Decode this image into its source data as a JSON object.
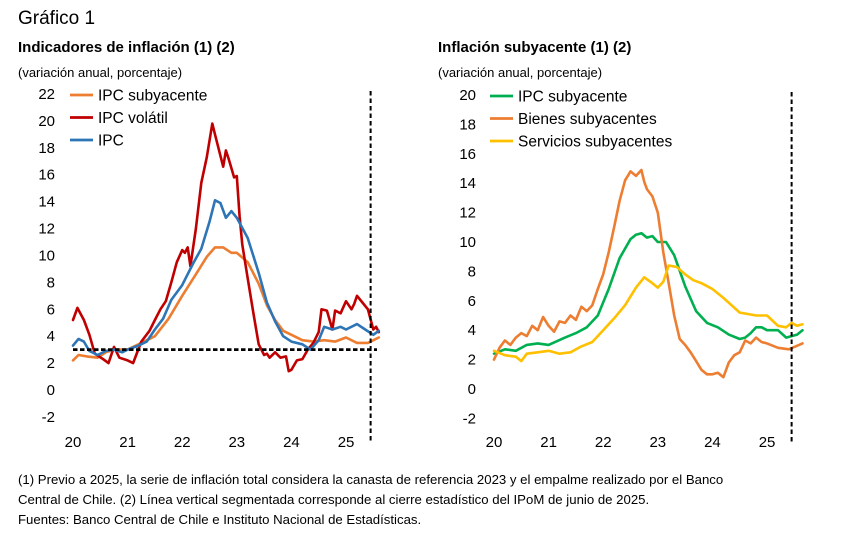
{
  "figure_title": "Gráfico 1",
  "notes": [
    "(1) Previo a 2025, la serie de inflación total considera la canasta de referencia 2023 y el empalme realizado por el Banco",
    "Central de Chile. (2) Línea vertical segmentada corresponde al cierre estadístico del IPoM de junio de 2025.",
    "Fuentes: Banco Central de Chile e Instituto Nacional de Estadísticas."
  ],
  "chart_data": [
    {
      "type": "line",
      "title": "Indicadores de inflación (1) (2)",
      "subtitle": "(variación anual, porcentaje)",
      "xlabel": "",
      "ylabel": "",
      "xlim": [
        2020,
        2025.75
      ],
      "ylim": [
        -2,
        22
      ],
      "x_ticks": [
        2020,
        2021,
        2022,
        2023,
        2024,
        2025
      ],
      "x_tick_labels": [
        "20",
        "21",
        "22",
        "23",
        "24",
        "25"
      ],
      "y_ticks": [
        -2,
        0,
        2,
        4,
        6,
        8,
        10,
        12,
        14,
        16,
        18,
        20,
        22
      ],
      "y_tick_labels": [
        "-2",
        "0",
        "2",
        "4",
        "6",
        "8",
        "10",
        "12",
        "14",
        "16",
        "18",
        "20",
        "22"
      ],
      "grid": false,
      "legend_position": "top-left",
      "reference_lines": [
        {
          "orientation": "horizontal",
          "value": 3,
          "style": "dashed",
          "color": "#000000"
        },
        {
          "orientation": "vertical",
          "value": 2025.45,
          "style": "dashed",
          "color": "#000000"
        }
      ],
      "series": [
        {
          "name": "IPC subyacente",
          "color": "#ED7D31",
          "x": [
            2020.0,
            2020.1,
            2020.25,
            2020.45,
            2020.6,
            2020.75,
            2021.0,
            2021.25,
            2021.5,
            2021.75,
            2022.0,
            2022.25,
            2022.45,
            2022.6,
            2022.75,
            2022.9,
            2023.0,
            2023.2,
            2023.4,
            2023.55,
            2023.7,
            2023.85,
            2024.0,
            2024.2,
            2024.4,
            2024.6,
            2024.8,
            2025.0,
            2025.2,
            2025.4,
            2025.6
          ],
          "values": [
            2.2,
            2.6,
            2.5,
            2.4,
            2.8,
            3.0,
            3.0,
            3.5,
            4.0,
            5.3,
            7.0,
            8.6,
            9.9,
            10.6,
            10.6,
            10.2,
            10.2,
            9.5,
            7.9,
            6.3,
            5.2,
            4.4,
            4.1,
            3.7,
            3.6,
            3.7,
            3.6,
            3.9,
            3.5,
            3.5,
            3.9
          ]
        },
        {
          "name": "IPC volátil",
          "color": "#C00000",
          "x": [
            2020.0,
            2020.08,
            2020.2,
            2020.3,
            2020.4,
            2020.55,
            2020.65,
            2020.75,
            2020.85,
            2021.0,
            2021.1,
            2021.25,
            2021.4,
            2021.5,
            2021.6,
            2021.7,
            2021.8,
            2021.9,
            2022.0,
            2022.05,
            2022.1,
            2022.15,
            2022.25,
            2022.35,
            2022.45,
            2022.55,
            2022.6,
            2022.65,
            2022.75,
            2022.8,
            2022.85,
            2022.95,
            2023.0,
            2023.05,
            2023.1,
            2023.2,
            2023.3,
            2023.4,
            2023.5,
            2023.55,
            2023.6,
            2023.7,
            2023.8,
            2023.9,
            2023.95,
            2024.0,
            2024.1,
            2024.2,
            2024.3,
            2024.4,
            2024.5,
            2024.55,
            2024.65,
            2024.75,
            2024.8,
            2024.9,
            2025.0,
            2025.1,
            2025.15,
            2025.2,
            2025.3,
            2025.4,
            2025.5,
            2025.55,
            2025.6
          ],
          "values": [
            5.2,
            6.1,
            5.2,
            4.1,
            2.7,
            2.3,
            2.0,
            3.2,
            2.4,
            2.2,
            2.0,
            3.6,
            4.4,
            5.2,
            6.0,
            6.6,
            8.0,
            9.5,
            10.4,
            10.2,
            10.6,
            9.2,
            12.0,
            15.4,
            17.3,
            19.8,
            19.0,
            18.2,
            16.6,
            17.8,
            17.2,
            15.8,
            15.9,
            12.9,
            10.8,
            8.3,
            5.8,
            3.4,
            2.6,
            2.7,
            2.4,
            2.8,
            2.4,
            2.5,
            1.4,
            1.5,
            2.2,
            2.3,
            3.0,
            3.5,
            4.3,
            6.0,
            5.9,
            4.5,
            5.9,
            5.7,
            6.6,
            6.0,
            6.4,
            7.0,
            6.5,
            6.0,
            4.5,
            4.7,
            4.3
          ]
        },
        {
          "name": "IPC",
          "color": "#2E75B6",
          "x": [
            2020.0,
            2020.1,
            2020.2,
            2020.3,
            2020.45,
            2020.6,
            2020.75,
            2020.9,
            2021.0,
            2021.2,
            2021.35,
            2021.5,
            2021.65,
            2021.8,
            2022.0,
            2022.2,
            2022.35,
            2022.5,
            2022.6,
            2022.7,
            2022.8,
            2022.9,
            2023.0,
            2023.2,
            2023.4,
            2023.55,
            2023.7,
            2023.85,
            2024.0,
            2024.2,
            2024.35,
            2024.5,
            2024.6,
            2024.75,
            2024.9,
            2025.0,
            2025.2,
            2025.35,
            2025.5,
            2025.6
          ],
          "values": [
            3.3,
            3.8,
            3.6,
            2.9,
            2.6,
            2.9,
            3.0,
            2.8,
            3.0,
            3.3,
            3.6,
            4.5,
            5.3,
            6.7,
            7.8,
            9.4,
            10.5,
            12.5,
            14.1,
            13.9,
            12.8,
            13.3,
            12.8,
            11.3,
            8.7,
            6.5,
            5.1,
            4.0,
            3.6,
            3.4,
            3.0,
            3.7,
            4.7,
            4.5,
            4.7,
            4.5,
            4.9,
            4.5,
            4.1,
            4.4
          ]
        }
      ]
    },
    {
      "type": "line",
      "title": "Inflación subyacente (1) (2)",
      "subtitle": "(variación anual, porcentaje)",
      "xlabel": "",
      "ylabel": "",
      "xlim": [
        2020,
        2025.75
      ],
      "ylim": [
        -2,
        20
      ],
      "x_ticks": [
        2020,
        2021,
        2022,
        2023,
        2024,
        2025
      ],
      "x_tick_labels": [
        "20",
        "21",
        "22",
        "23",
        "24",
        "25"
      ],
      "y_ticks": [
        -2,
        0,
        2,
        4,
        6,
        8,
        10,
        12,
        14,
        16,
        18,
        20
      ],
      "y_tick_labels": [
        "-2",
        "0",
        "2",
        "4",
        "6",
        "8",
        "10",
        "12",
        "14",
        "16",
        "18",
        "20"
      ],
      "grid": false,
      "legend_position": "top-left",
      "reference_lines": [
        {
          "orientation": "vertical",
          "value": 2025.45,
          "style": "dashed",
          "color": "#000000"
        }
      ],
      "series": [
        {
          "name": "IPC subyacente",
          "color": "#00B050",
          "x": [
            2020.0,
            2020.2,
            2020.4,
            2020.6,
            2020.8,
            2021.0,
            2021.3,
            2021.5,
            2021.7,
            2021.9,
            2022.1,
            2022.3,
            2022.5,
            2022.6,
            2022.7,
            2022.8,
            2022.9,
            2023.0,
            2023.15,
            2023.3,
            2023.5,
            2023.7,
            2023.9,
            2024.1,
            2024.3,
            2024.5,
            2024.6,
            2024.7,
            2024.8,
            2024.9,
            2025.0,
            2025.2,
            2025.35,
            2025.45,
            2025.55,
            2025.65
          ],
          "values": [
            2.4,
            2.7,
            2.6,
            3.0,
            3.1,
            3.0,
            3.5,
            3.8,
            4.2,
            5.0,
            6.8,
            8.9,
            10.2,
            10.5,
            10.6,
            10.3,
            10.4,
            10.0,
            10.0,
            9.1,
            7.0,
            5.3,
            4.5,
            4.2,
            3.7,
            3.4,
            3.5,
            3.8,
            4.2,
            4.2,
            4.0,
            4.0,
            3.5,
            3.6,
            3.7,
            4.0
          ]
        },
        {
          "name": "Bienes subyacentes",
          "color": "#ED7D31",
          "x": [
            2020.0,
            2020.1,
            2020.2,
            2020.3,
            2020.4,
            2020.5,
            2020.6,
            2020.7,
            2020.8,
            2020.9,
            2021.0,
            2021.1,
            2021.2,
            2021.3,
            2021.4,
            2021.5,
            2021.6,
            2021.7,
            2021.8,
            2021.9,
            2022.0,
            2022.1,
            2022.2,
            2022.3,
            2022.4,
            2022.5,
            2022.6,
            2022.7,
            2022.75,
            2022.8,
            2022.9,
            2023.0,
            2023.1,
            2023.2,
            2023.3,
            2023.4,
            2023.5,
            2023.6,
            2023.7,
            2023.8,
            2023.9,
            2024.0,
            2024.1,
            2024.2,
            2024.3,
            2024.4,
            2024.5,
            2024.6,
            2024.7,
            2024.8,
            2024.9,
            2025.0,
            2025.2,
            2025.4,
            2025.65
          ],
          "values": [
            2.0,
            2.8,
            3.3,
            3.0,
            3.5,
            3.8,
            3.6,
            4.3,
            4.0,
            4.9,
            4.3,
            3.9,
            4.6,
            4.5,
            5.0,
            4.7,
            5.6,
            5.3,
            5.7,
            6.8,
            7.8,
            9.3,
            11.0,
            12.8,
            14.2,
            14.8,
            14.5,
            14.9,
            14.1,
            13.6,
            13.1,
            12.0,
            9.3,
            7.2,
            5.0,
            3.4,
            3.0,
            2.5,
            1.9,
            1.3,
            1.0,
            1.0,
            1.1,
            0.8,
            1.8,
            2.3,
            2.5,
            3.3,
            3.1,
            3.5,
            3.2,
            3.1,
            2.8,
            2.7,
            3.1
          ]
        },
        {
          "name": "Servicios subyacentes",
          "color": "#FFC000",
          "x": [
            2020.0,
            2020.2,
            2020.4,
            2020.5,
            2020.6,
            2020.8,
            2021.0,
            2021.2,
            2021.4,
            2021.6,
            2021.8,
            2022.0,
            2022.2,
            2022.4,
            2022.6,
            2022.75,
            2022.9,
            2023.0,
            2023.1,
            2023.2,
            2023.35,
            2023.5,
            2023.65,
            2023.8,
            2024.0,
            2024.2,
            2024.35,
            2024.5,
            2024.65,
            2024.8,
            2025.0,
            2025.2,
            2025.35,
            2025.45,
            2025.55,
            2025.65
          ],
          "values": [
            2.6,
            2.3,
            2.2,
            1.9,
            2.4,
            2.5,
            2.6,
            2.4,
            2.5,
            2.9,
            3.2,
            4.0,
            4.8,
            5.7,
            6.9,
            7.6,
            7.2,
            6.9,
            7.3,
            8.4,
            8.3,
            7.8,
            7.4,
            7.2,
            6.8,
            6.2,
            5.7,
            5.2,
            5.1,
            5.0,
            5.0,
            4.3,
            4.2,
            4.5,
            4.3,
            4.4
          ]
        }
      ]
    }
  ]
}
